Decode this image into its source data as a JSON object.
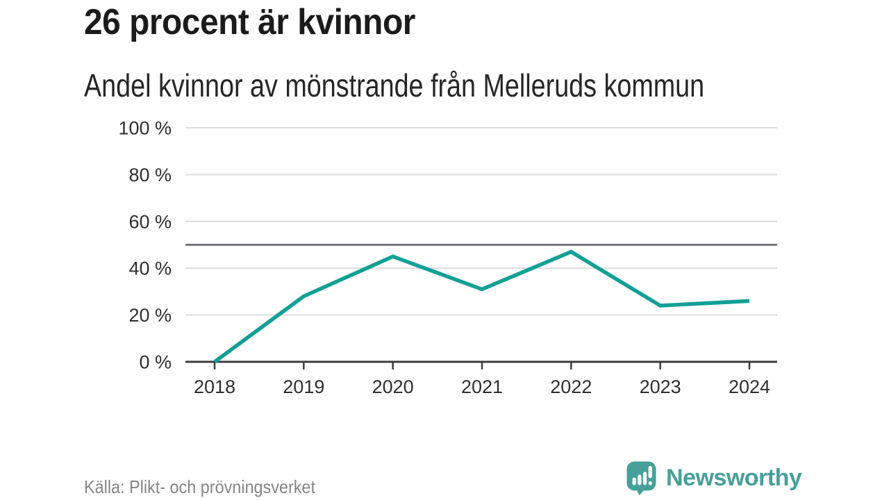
{
  "header": {
    "title": "26 procent är kvinnor",
    "subtitle": "Andel kvinnor av mönstrande från Melleruds kommun"
  },
  "chart_data": {
    "type": "line",
    "title": "26 procent är kvinnor",
    "subtitle": "Andel kvinnor av mönstrande från Melleruds kommun",
    "x": [
      "2018",
      "2019",
      "2020",
      "2021",
      "2022",
      "2023",
      "2024"
    ],
    "series": [
      {
        "name": "Andel kvinnor av mönstrande",
        "values": [
          0,
          28,
          45,
          31,
          47,
          24,
          26
        ]
      }
    ],
    "xlabel": "",
    "ylabel": "",
    "ylim": [
      0,
      100
    ],
    "yticks": [
      {
        "value": 0,
        "label": "0 %"
      },
      {
        "value": 20,
        "label": "20 %"
      },
      {
        "value": 40,
        "label": "40 %"
      },
      {
        "value": 60,
        "label": "60 %"
      },
      {
        "value": 80,
        "label": "80 %"
      },
      {
        "value": 100,
        "label": "100 %"
      }
    ],
    "reference_line": {
      "value": 50
    },
    "grid": true,
    "legend_position": "none"
  },
  "footer": {
    "source": "Källa: Plikt- och prövningsverket",
    "logo_text": "Newsworthy"
  },
  "colors": {
    "accent_line": "#12a096",
    "logo_teal": "#46a099",
    "grid": "#dcdcdc",
    "reference": "#5f6066",
    "axis": "#3c3c3c",
    "tick_text": "#2e2e2e",
    "muted_text": "#858585"
  }
}
